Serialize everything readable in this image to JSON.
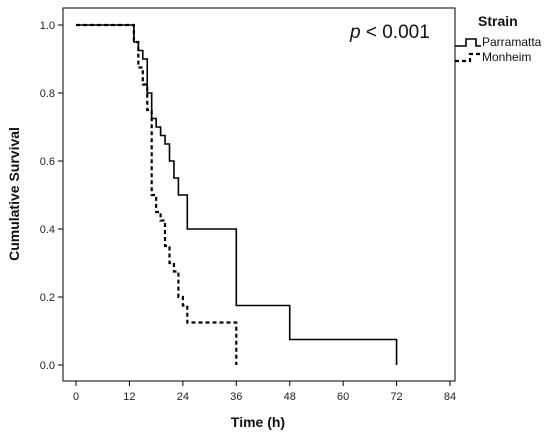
{
  "chart_data": {
    "type": "line",
    "subtype": "kaplan-meier-step",
    "xlabel": "Time (h)",
    "ylabel": "Cumulative Survival",
    "xlim": [
      0,
      84
    ],
    "ylim": [
      0.0,
      1.0
    ],
    "xticks": [
      "0",
      "12",
      "24",
      "36",
      "48",
      "60",
      "72",
      "84"
    ],
    "yticks": [
      "0.0",
      "0.2",
      "0.4",
      "0.6",
      "0.8",
      "1.0"
    ],
    "grid": false,
    "legend_position": "top-right, outside plot",
    "legend_title": "Strain",
    "annotation": {
      "italic": "p",
      "rest": " < 0.001"
    },
    "series": [
      {
        "name": "Parramatta",
        "line_style": "solid",
        "color": "#000000",
        "x": [
          0,
          13,
          14,
          15,
          16,
          17,
          18,
          19,
          20,
          21,
          22,
          23,
          25,
          36,
          48,
          72
        ],
        "y": [
          1.0,
          0.95,
          0.925,
          0.9,
          0.8,
          0.725,
          0.7,
          0.675,
          0.65,
          0.6,
          0.55,
          0.5,
          0.4,
          0.175,
          0.075,
          0.0
        ]
      },
      {
        "name": "Monheim",
        "line_style": "dashed",
        "color": "#000000",
        "x": [
          0,
          13,
          14,
          15,
          16,
          17,
          18,
          19,
          20,
          21,
          22,
          23,
          24,
          25,
          36
        ],
        "y": [
          1.0,
          0.95,
          0.875,
          0.825,
          0.75,
          0.5,
          0.45,
          0.425,
          0.35,
          0.3,
          0.275,
          0.2,
          0.175,
          0.125,
          0.0
        ]
      }
    ]
  }
}
